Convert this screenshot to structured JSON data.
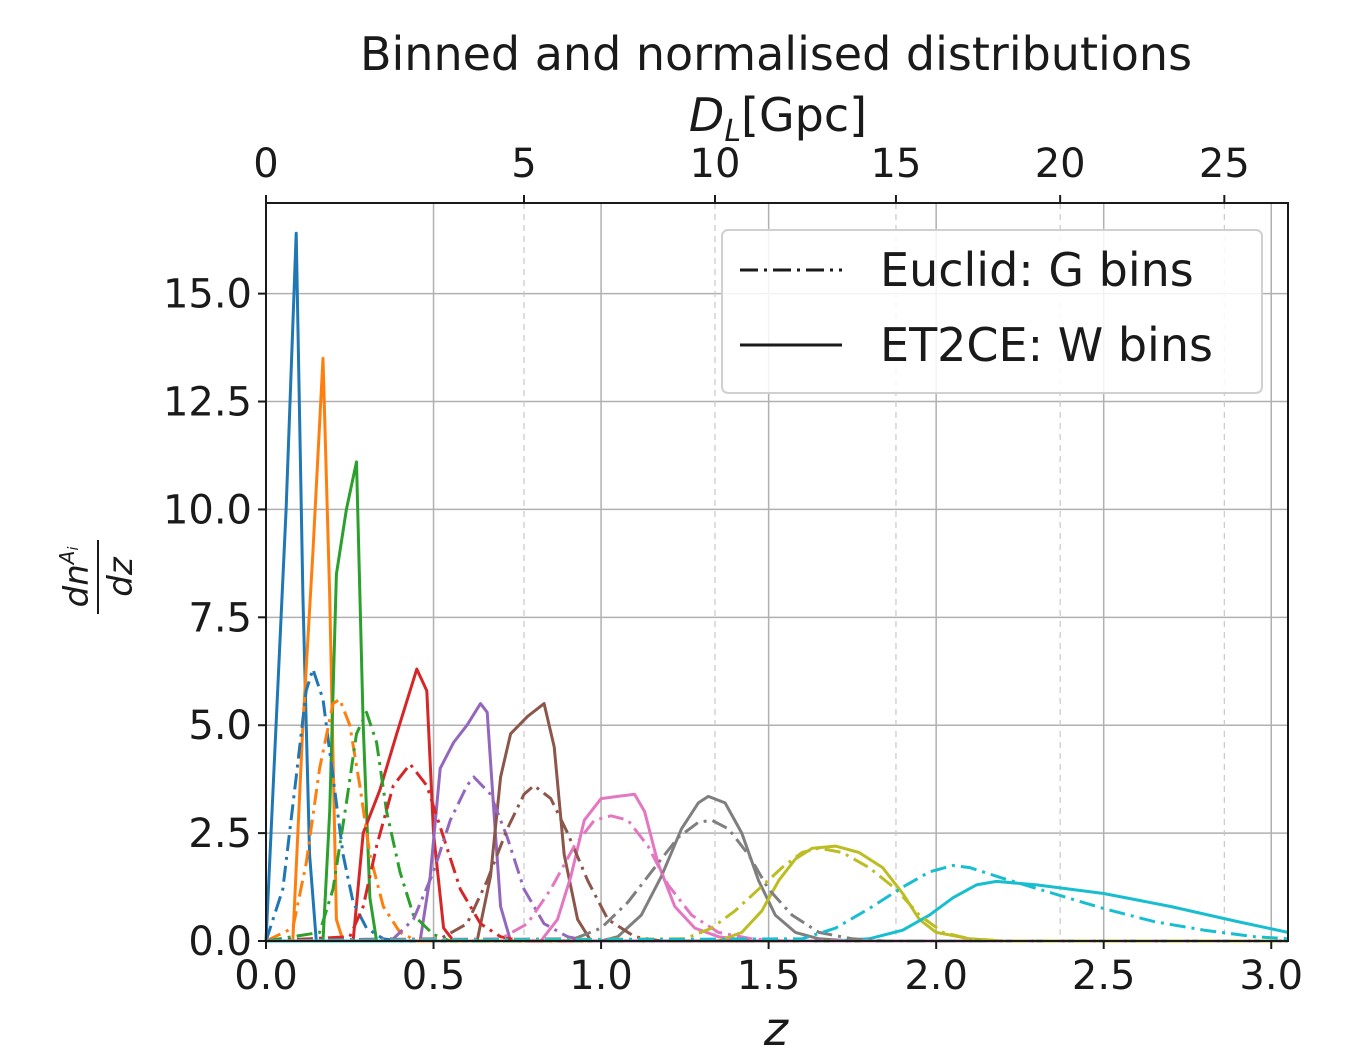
{
  "chart_data": {
    "type": "line",
    "title": "Binned and normalised distributions",
    "xlabel": "z",
    "ylabel": "dn^{A_i}/dz",
    "xlim": [
      0.0,
      3.05
    ],
    "ylim": [
      0.0,
      17.1
    ],
    "xticks": [
      "0.0",
      "0.5",
      "1.0",
      "1.5",
      "2.0",
      "2.5",
      "3.0"
    ],
    "yticks": [
      "0.0",
      "2.5",
      "5.0",
      "7.5",
      "10.0",
      "12.5",
      "15.0"
    ],
    "top_axis": {
      "label": "D_L[Gpc]",
      "ticks": [
        {
          "label": "0",
          "z": 0.0
        },
        {
          "label": "5",
          "z": 0.77
        },
        {
          "label": "10",
          "z": 1.34
        },
        {
          "label": "15",
          "z": 1.88
        },
        {
          "label": "20",
          "z": 2.37
        },
        {
          "label": "25",
          "z": 2.86
        }
      ]
    },
    "grid": true,
    "legend": {
      "position": "top-right",
      "entries": [
        {
          "label": "Euclid: G bins",
          "style": "dashdot"
        },
        {
          "label": "ET2CE: W bins",
          "style": "solid"
        }
      ]
    },
    "colors": [
      "#1f77b4",
      "#ff7f0e",
      "#2ca02c",
      "#d62728",
      "#9467bd",
      "#8c564b",
      "#e377c2",
      "#7f7f7f",
      "#bcbd22",
      "#17becf"
    ],
    "series": [
      {
        "group": "ET2CE: W bins",
        "color": "#1f77b4",
        "points": [
          [
            0.0,
            0
          ],
          [
            0.06,
            10
          ],
          [
            0.09,
            16.4
          ],
          [
            0.11,
            8
          ],
          [
            0.13,
            2
          ],
          [
            0.15,
            0
          ],
          [
            3.05,
            0
          ]
        ]
      },
      {
        "group": "ET2CE: W bins",
        "color": "#ff7f0e",
        "points": [
          [
            0.0,
            0
          ],
          [
            0.08,
            0
          ],
          [
            0.11,
            5
          ],
          [
            0.14,
            9
          ],
          [
            0.17,
            13.5
          ],
          [
            0.19,
            8
          ],
          [
            0.21,
            0.5
          ],
          [
            0.23,
            0
          ],
          [
            3.05,
            0
          ]
        ]
      },
      {
        "group": "ET2CE: W bins",
        "color": "#2ca02c",
        "points": [
          [
            0.0,
            0
          ],
          [
            0.17,
            0
          ],
          [
            0.19,
            3
          ],
          [
            0.21,
            8.5
          ],
          [
            0.24,
            10
          ],
          [
            0.27,
            11.1
          ],
          [
            0.29,
            5
          ],
          [
            0.31,
            1
          ],
          [
            0.33,
            0
          ],
          [
            3.05,
            0
          ]
        ]
      },
      {
        "group": "ET2CE: W bins",
        "color": "#d62728",
        "points": [
          [
            0.0,
            0
          ],
          [
            0.26,
            0
          ],
          [
            0.29,
            2.5
          ],
          [
            0.34,
            3.5
          ],
          [
            0.39,
            4.8
          ],
          [
            0.45,
            6.3
          ],
          [
            0.48,
            5.8
          ],
          [
            0.5,
            2.5
          ],
          [
            0.53,
            0.3
          ],
          [
            0.56,
            0
          ],
          [
            3.05,
            0
          ]
        ]
      },
      {
        "group": "ET2CE: W bins",
        "color": "#9467bd",
        "points": [
          [
            0.0,
            0
          ],
          [
            0.46,
            0
          ],
          [
            0.49,
            1.5
          ],
          [
            0.52,
            4
          ],
          [
            0.56,
            4.6
          ],
          [
            0.6,
            5
          ],
          [
            0.64,
            5.5
          ],
          [
            0.66,
            5.3
          ],
          [
            0.68,
            3
          ],
          [
            0.7,
            0.8
          ],
          [
            0.73,
            0
          ],
          [
            3.05,
            0
          ]
        ]
      },
      {
        "group": "ET2CE: W bins",
        "color": "#8c564b",
        "points": [
          [
            0.0,
            0
          ],
          [
            0.63,
            0
          ],
          [
            0.67,
            1.5
          ],
          [
            0.7,
            3.8
          ],
          [
            0.73,
            4.8
          ],
          [
            0.78,
            5.2
          ],
          [
            0.83,
            5.5
          ],
          [
            0.86,
            4.5
          ],
          [
            0.89,
            2
          ],
          [
            0.93,
            0.5
          ],
          [
            0.97,
            0
          ],
          [
            3.05,
            0
          ]
        ]
      },
      {
        "group": "ET2CE: W bins",
        "color": "#e377c2",
        "points": [
          [
            0.0,
            0
          ],
          [
            0.82,
            0
          ],
          [
            0.87,
            0.5
          ],
          [
            0.91,
            1.5
          ],
          [
            0.95,
            2.8
          ],
          [
            1.0,
            3.3
          ],
          [
            1.05,
            3.35
          ],
          [
            1.1,
            3.4
          ],
          [
            1.13,
            3.0
          ],
          [
            1.17,
            1.8
          ],
          [
            1.22,
            0.8
          ],
          [
            1.28,
            0.3
          ],
          [
            1.35,
            0.1
          ],
          [
            1.45,
            0
          ],
          [
            3.05,
            0
          ]
        ]
      },
      {
        "group": "ET2CE: W bins",
        "color": "#7f7f7f",
        "points": [
          [
            0.0,
            0
          ],
          [
            1.0,
            0
          ],
          [
            1.05,
            0.1
          ],
          [
            1.12,
            0.6
          ],
          [
            1.18,
            1.5
          ],
          [
            1.24,
            2.6
          ],
          [
            1.29,
            3.2
          ],
          [
            1.32,
            3.35
          ],
          [
            1.37,
            3.2
          ],
          [
            1.42,
            2.5
          ],
          [
            1.47,
            1.4
          ],
          [
            1.52,
            0.6
          ],
          [
            1.58,
            0.2
          ],
          [
            1.65,
            0.05
          ],
          [
            1.75,
            0
          ],
          [
            3.05,
            0
          ]
        ]
      },
      {
        "group": "ET2CE: W bins",
        "color": "#bcbd22",
        "points": [
          [
            0.0,
            0
          ],
          [
            1.35,
            0
          ],
          [
            1.42,
            0.2
          ],
          [
            1.48,
            0.7
          ],
          [
            1.53,
            1.4
          ],
          [
            1.58,
            1.9
          ],
          [
            1.63,
            2.15
          ],
          [
            1.7,
            2.2
          ],
          [
            1.77,
            2.05
          ],
          [
            1.84,
            1.7
          ],
          [
            1.9,
            1.1
          ],
          [
            1.95,
            0.5
          ],
          [
            2.0,
            0.2
          ],
          [
            2.1,
            0.05
          ],
          [
            2.2,
            0
          ],
          [
            3.05,
            0
          ]
        ]
      },
      {
        "group": "ET2CE: W bins",
        "color": "#17becf",
        "points": [
          [
            0.0,
            0
          ],
          [
            1.7,
            0
          ],
          [
            1.8,
            0.05
          ],
          [
            1.9,
            0.25
          ],
          [
            1.98,
            0.6
          ],
          [
            2.05,
            1.0
          ],
          [
            2.12,
            1.3
          ],
          [
            2.18,
            1.38
          ],
          [
            2.3,
            1.3
          ],
          [
            2.5,
            1.1
          ],
          [
            2.7,
            0.8
          ],
          [
            2.9,
            0.45
          ],
          [
            3.05,
            0.2
          ]
        ]
      },
      {
        "group": "Euclid: G bins",
        "color": "#1f77b4",
        "points": [
          [
            0.0,
            0
          ],
          [
            0.05,
            1.2
          ],
          [
            0.09,
            3.8
          ],
          [
            0.12,
            5.8
          ],
          [
            0.14,
            6.3
          ],
          [
            0.17,
            5.6
          ],
          [
            0.2,
            3.8
          ],
          [
            0.23,
            2.0
          ],
          [
            0.26,
            0.9
          ],
          [
            0.3,
            0.3
          ],
          [
            0.35,
            0.05
          ],
          [
            0.4,
            0
          ],
          [
            3.05,
            0
          ]
        ]
      },
      {
        "group": "Euclid: G bins",
        "color": "#ff7f0e",
        "points": [
          [
            0.0,
            0
          ],
          [
            0.08,
            0.3
          ],
          [
            0.12,
            1.8
          ],
          [
            0.16,
            4.0
          ],
          [
            0.2,
            5.5
          ],
          [
            0.22,
            5.6
          ],
          [
            0.25,
            5.0
          ],
          [
            0.28,
            3.6
          ],
          [
            0.31,
            2.0
          ],
          [
            0.35,
            0.8
          ],
          [
            0.4,
            0.2
          ],
          [
            0.45,
            0
          ],
          [
            3.05,
            0
          ]
        ]
      },
      {
        "group": "Euclid: G bins",
        "color": "#2ca02c",
        "points": [
          [
            0.0,
            0
          ],
          [
            0.16,
            0.2
          ],
          [
            0.2,
            1.2
          ],
          [
            0.24,
            3.2
          ],
          [
            0.27,
            4.8
          ],
          [
            0.3,
            5.3
          ],
          [
            0.33,
            4.6
          ],
          [
            0.36,
            3.0
          ],
          [
            0.4,
            1.6
          ],
          [
            0.44,
            0.6
          ],
          [
            0.5,
            0.15
          ],
          [
            0.55,
            0
          ],
          [
            3.05,
            0
          ]
        ]
      },
      {
        "group": "Euclid: G bins",
        "color": "#d62728",
        "points": [
          [
            0.0,
            0
          ],
          [
            0.25,
            0.1
          ],
          [
            0.29,
            0.8
          ],
          [
            0.33,
            2.2
          ],
          [
            0.38,
            3.6
          ],
          [
            0.43,
            4.1
          ],
          [
            0.48,
            3.6
          ],
          [
            0.53,
            2.4
          ],
          [
            0.58,
            1.2
          ],
          [
            0.64,
            0.4
          ],
          [
            0.7,
            0.1
          ],
          [
            0.76,
            0
          ],
          [
            3.05,
            0
          ]
        ]
      },
      {
        "group": "Euclid: G bins",
        "color": "#9467bd",
        "points": [
          [
            0.0,
            0
          ],
          [
            0.38,
            0.05
          ],
          [
            0.44,
            0.5
          ],
          [
            0.5,
            1.6
          ],
          [
            0.55,
            2.8
          ],
          [
            0.6,
            3.6
          ],
          [
            0.62,
            3.8
          ],
          [
            0.67,
            3.4
          ],
          [
            0.72,
            2.4
          ],
          [
            0.77,
            1.2
          ],
          [
            0.83,
            0.4
          ],
          [
            0.9,
            0.1
          ],
          [
            0.96,
            0
          ],
          [
            3.05,
            0
          ]
        ]
      },
      {
        "group": "Euclid: G bins",
        "color": "#8c564b",
        "points": [
          [
            0.0,
            0
          ],
          [
            0.52,
            0.05
          ],
          [
            0.6,
            0.4
          ],
          [
            0.66,
            1.4
          ],
          [
            0.72,
            2.6
          ],
          [
            0.77,
            3.4
          ],
          [
            0.8,
            3.6
          ],
          [
            0.85,
            3.3
          ],
          [
            0.9,
            2.5
          ],
          [
            0.96,
            1.4
          ],
          [
            1.02,
            0.5
          ],
          [
            1.1,
            0.1
          ],
          [
            1.18,
            0
          ],
          [
            3.05,
            0
          ]
        ]
      },
      {
        "group": "Euclid: G bins",
        "color": "#e377c2",
        "points": [
          [
            0.0,
            0
          ],
          [
            0.7,
            0.05
          ],
          [
            0.78,
            0.4
          ],
          [
            0.85,
            1.2
          ],
          [
            0.92,
            2.2
          ],
          [
            0.98,
            2.8
          ],
          [
            1.03,
            2.9
          ],
          [
            1.08,
            2.8
          ],
          [
            1.14,
            2.2
          ],
          [
            1.2,
            1.3
          ],
          [
            1.27,
            0.6
          ],
          [
            1.35,
            0.2
          ],
          [
            1.45,
            0.05
          ],
          [
            1.55,
            0
          ],
          [
            3.05,
            0
          ]
        ]
      },
      {
        "group": "Euclid: G bins",
        "color": "#7f7f7f",
        "points": [
          [
            0.0,
            0
          ],
          [
            0.92,
            0.05
          ],
          [
            1.0,
            0.3
          ],
          [
            1.08,
            0.9
          ],
          [
            1.16,
            1.7
          ],
          [
            1.23,
            2.4
          ],
          [
            1.29,
            2.75
          ],
          [
            1.33,
            2.8
          ],
          [
            1.38,
            2.6
          ],
          [
            1.44,
            2.0
          ],
          [
            1.5,
            1.2
          ],
          [
            1.57,
            0.6
          ],
          [
            1.65,
            0.2
          ],
          [
            1.75,
            0.05
          ],
          [
            1.85,
            0
          ],
          [
            3.05,
            0
          ]
        ]
      },
      {
        "group": "Euclid: G bins",
        "color": "#bcbd22",
        "points": [
          [
            0.0,
            0
          ],
          [
            1.25,
            0.05
          ],
          [
            1.33,
            0.3
          ],
          [
            1.4,
            0.7
          ],
          [
            1.47,
            1.2
          ],
          [
            1.54,
            1.7
          ],
          [
            1.6,
            2.05
          ],
          [
            1.65,
            2.15
          ],
          [
            1.72,
            2.05
          ],
          [
            1.8,
            1.7
          ],
          [
            1.88,
            1.2
          ],
          [
            1.95,
            0.6
          ],
          [
            2.02,
            0.2
          ],
          [
            2.1,
            0.05
          ],
          [
            2.2,
            0
          ],
          [
            3.05,
            0
          ]
        ]
      },
      {
        "group": "Euclid: G bins",
        "color": "#17becf",
        "points": [
          [
            0.0,
            0
          ],
          [
            1.6,
            0.05
          ],
          [
            1.7,
            0.3
          ],
          [
            1.8,
            0.75
          ],
          [
            1.9,
            1.25
          ],
          [
            1.98,
            1.6
          ],
          [
            2.05,
            1.75
          ],
          [
            2.1,
            1.7
          ],
          [
            2.2,
            1.45
          ],
          [
            2.35,
            1.1
          ],
          [
            2.5,
            0.75
          ],
          [
            2.65,
            0.45
          ],
          [
            2.8,
            0.25
          ],
          [
            2.95,
            0.1
          ],
          [
            3.05,
            0.05
          ]
        ]
      }
    ]
  }
}
